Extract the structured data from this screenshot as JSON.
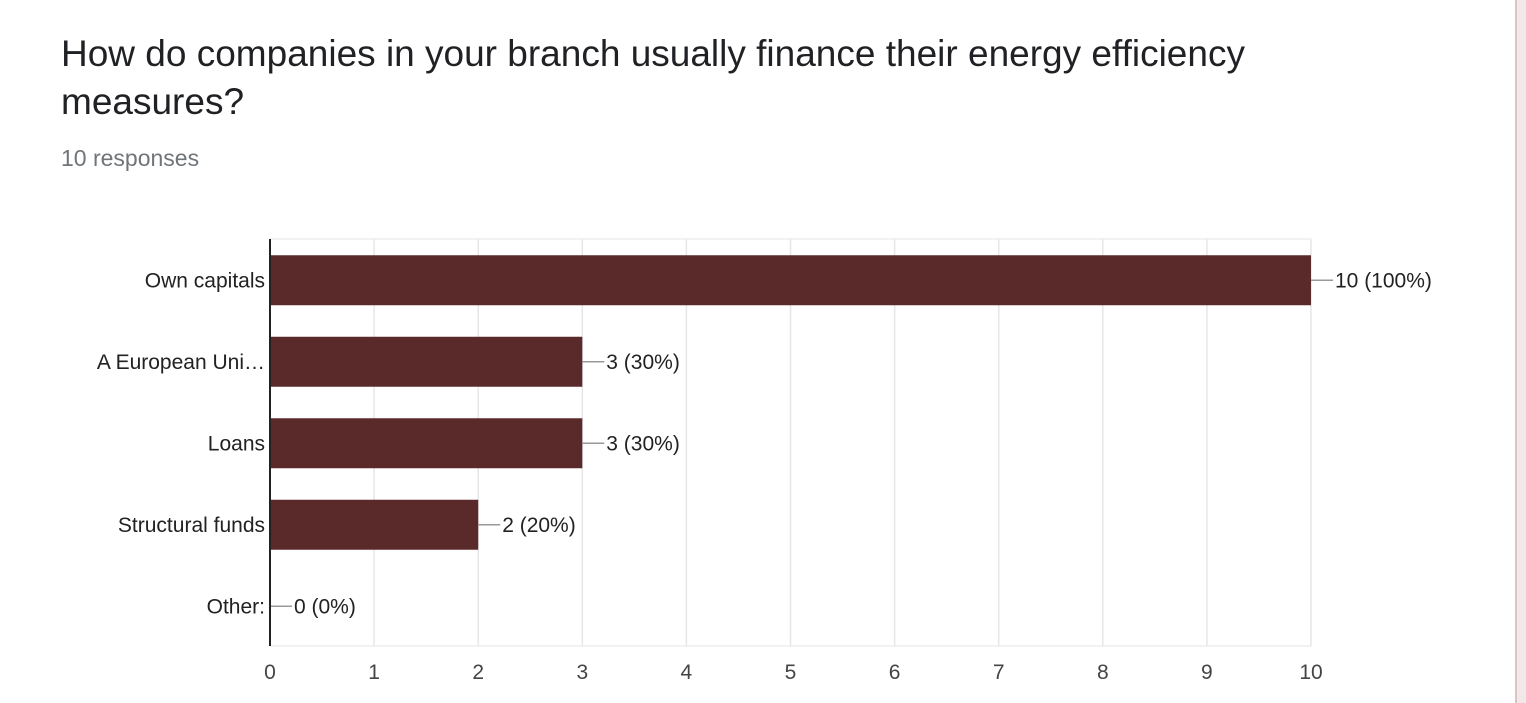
{
  "title": "How do companies in your branch usually finance their energy efficiency measures?",
  "response_count": "10 responses",
  "colors": {
    "bar": "#5a2a2b",
    "grid": "#e6e6e6",
    "axis": "#222222",
    "leader": "#999999",
    "rail": "#f3e8e9"
  },
  "chart_data": {
    "type": "bar",
    "orientation": "horizontal",
    "categories": [
      "Own capitals",
      "A European Uni…",
      "Loans",
      "Structural funds",
      "Other:"
    ],
    "values": [
      10,
      3,
      3,
      2,
      0
    ],
    "data_labels": [
      "10 (100%)",
      "3 (30%)",
      "3 (30%)",
      "2 (20%)",
      "0 (0%)"
    ],
    "xlim": [
      0,
      10
    ],
    "x_ticks": [
      0,
      1,
      2,
      3,
      4,
      5,
      6,
      7,
      8,
      9,
      10
    ],
    "x_tick_labels": [
      "0",
      "1",
      "2",
      "3",
      "4",
      "5",
      "6",
      "7",
      "8",
      "9",
      "10"
    ],
    "grid": true,
    "legend": "none"
  }
}
